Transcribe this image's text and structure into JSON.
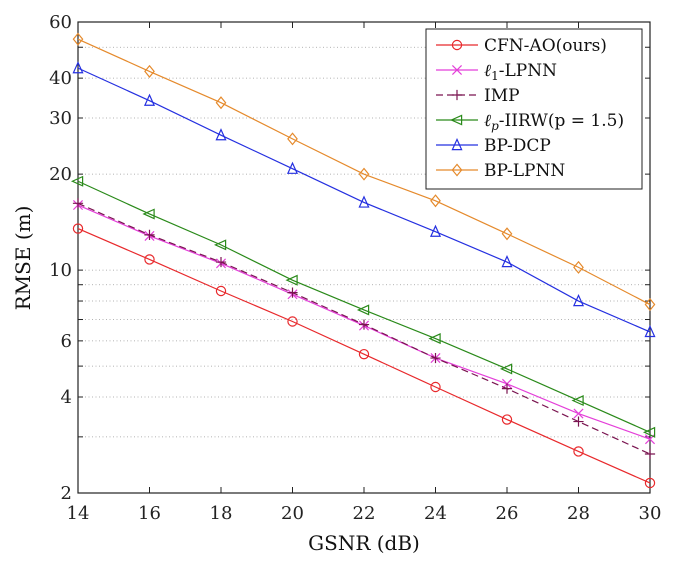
{
  "chart_data": {
    "type": "line",
    "title": "",
    "xlabel": "GSNR (dB)",
    "ylabel": "RMSE (m)",
    "x": [
      14,
      16,
      18,
      20,
      22,
      24,
      26,
      28,
      30
    ],
    "xlim": [
      14,
      30
    ],
    "ylim": [
      2,
      60
    ],
    "yscale": "log",
    "xticks": [
      "14",
      "16",
      "18",
      "20",
      "22",
      "24",
      "26",
      "28",
      "30"
    ],
    "yticks": [
      {
        "value": 2,
        "label": "2"
      },
      {
        "value": 4,
        "label": "4"
      },
      {
        "value": 6,
        "label": "6"
      },
      {
        "value": 10,
        "label": "10"
      },
      {
        "value": 20,
        "label": "20"
      },
      {
        "value": 30,
        "label": "30"
      },
      {
        "value": 40,
        "label": "40"
      },
      {
        "value": 60,
        "label": "60"
      }
    ],
    "grid": "y-minor-dotted",
    "legend_position": "top-right",
    "series": [
      {
        "name": "CFN-AO(ours)",
        "color": "#e8292c",
        "marker": "circle",
        "dash": "solid",
        "values": [
          13.5,
          10.8,
          8.6,
          6.9,
          5.45,
          4.3,
          3.4,
          2.7,
          2.15
        ]
      },
      {
        "name": "ℓ1-LPNN",
        "color": "#e43fd9",
        "marker": "x",
        "dash": "solid",
        "values": [
          16.0,
          12.8,
          10.5,
          8.4,
          6.7,
          5.3,
          4.4,
          3.55,
          2.95
        ]
      },
      {
        "name": "IMP",
        "color": "#7a1450",
        "marker": "plus",
        "dash": "dashed",
        "values": [
          16.2,
          12.9,
          10.6,
          8.5,
          6.75,
          5.3,
          4.25,
          3.35,
          2.65
        ]
      },
      {
        "name": "ℓp-IIRW(p = 1.5)",
        "color": "#2a8a1a",
        "marker": "triangle-left",
        "dash": "solid",
        "values": [
          19.0,
          15.0,
          12.0,
          9.3,
          7.5,
          6.1,
          4.9,
          3.9,
          3.1
        ]
      },
      {
        "name": "BP-DCP",
        "color": "#2530e0",
        "marker": "triangle-up",
        "dash": "solid",
        "values": [
          43.0,
          34.0,
          26.5,
          20.8,
          16.3,
          13.2,
          10.6,
          8.0,
          6.4
        ]
      },
      {
        "name": "BP-LPNN",
        "color": "#e58a2c",
        "marker": "diamond",
        "dash": "solid",
        "values": [
          53.0,
          42.0,
          33.5,
          25.8,
          20.0,
          16.5,
          13.0,
          10.2,
          7.8
        ]
      }
    ]
  }
}
